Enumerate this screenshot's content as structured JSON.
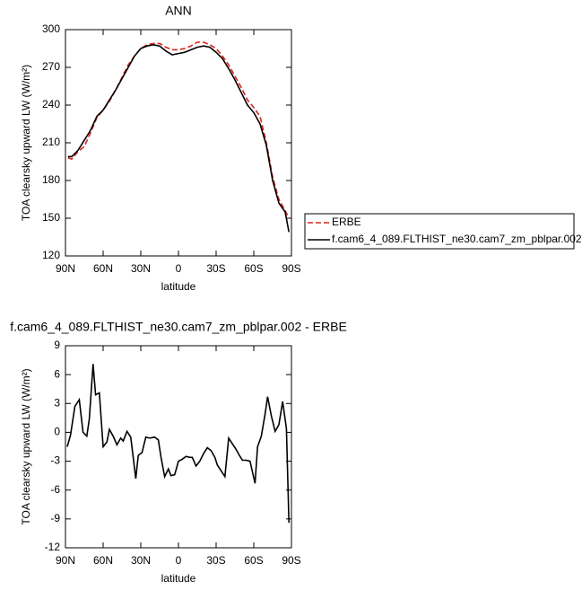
{
  "chart_data": [
    {
      "type": "line",
      "title": "ANN",
      "xlabel": "latitude",
      "ylabel": "TOA clearsky upward LW (W/m²)",
      "x": [
        88,
        85,
        80,
        75,
        70,
        65,
        60,
        55,
        50,
        45,
        40,
        35,
        30,
        25,
        20,
        15,
        10,
        5,
        0,
        -5,
        -10,
        -15,
        -20,
        -25,
        -30,
        -35,
        -40,
        -45,
        -50,
        -55,
        -60,
        -65,
        -70,
        -75,
        -80,
        -85,
        -88
      ],
      "series": [
        {
          "name": "ERBE",
          "color": "#e0201b",
          "dashed": true,
          "values": [
            198,
            197,
            203,
            207,
            218,
            230,
            236,
            243,
            252,
            262,
            272,
            279,
            285,
            288,
            289,
            289,
            286,
            284,
            284,
            285,
            287,
            290,
            290,
            288,
            285,
            279,
            272,
            263,
            254,
            244,
            238,
            231,
            210,
            183,
            165,
            156,
            150
          ]
        },
        {
          "name": "f.cam6_4_089.FLTHIST_ne30.cam7_zm_pblpar.002",
          "color": "#000000",
          "dashed": false,
          "values": [
            199,
            199,
            204,
            212,
            220,
            231,
            236,
            244,
            252,
            261,
            270,
            279,
            285,
            287,
            288,
            287,
            283,
            280,
            281,
            282,
            284,
            286,
            287,
            286,
            282,
            277,
            269,
            260,
            250,
            240,
            234,
            225,
            208,
            180,
            162,
            155,
            139
          ]
        }
      ],
      "xlim": [
        90,
        -90
      ],
      "xticks": [
        {
          "value": 90,
          "label": "90N"
        },
        {
          "value": 60,
          "label": "60N"
        },
        {
          "value": 30,
          "label": "30N"
        },
        0,
        {
          "value": -30,
          "label": "30S"
        },
        {
          "value": -60,
          "label": "60S"
        },
        {
          "value": -90,
          "label": "90S"
        }
      ],
      "ylim": [
        120,
        300
      ],
      "yticks": [
        120,
        150,
        180,
        210,
        240,
        270,
        300
      ],
      "legend": "right"
    },
    {
      "type": "line",
      "title": "f.cam6_4_089.FLTHIST_ne30.cam7_zm_pblpar.002 - ERBE",
      "xlabel": "latitude",
      "ylabel": "TOA clearsky upward LW (W/m²)",
      "x": [
        88.6,
        86,
        82.5,
        79,
        76,
        73,
        71,
        68,
        66,
        63,
        60,
        57,
        55,
        52,
        49,
        46,
        44,
        41,
        38,
        34,
        32,
        29,
        26,
        23,
        19,
        16,
        14,
        11,
        8,
        6,
        3,
        0,
        -3,
        -6,
        -9,
        -11,
        -14,
        -17,
        -20,
        -23,
        -26,
        -29,
        -31,
        -34,
        -37,
        -40,
        -43,
        -46,
        -49,
        -51,
        -54,
        -57,
        -61,
        -63,
        -66,
        -69,
        -71,
        -74,
        -77,
        -80,
        -83,
        -86,
        -88
      ],
      "values": [
        -1.5,
        -0.3,
        2.7,
        3.4,
        0,
        -0.4,
        1.4,
        7.1,
        3.9,
        4.1,
        -1.5,
        -1.0,
        0.3,
        -0.4,
        -1.3,
        -0.6,
        -0.9,
        0.1,
        -0.5,
        -4.8,
        -2.4,
        -2.1,
        -0.5,
        -0.6,
        -0.5,
        -0.8,
        -2.5,
        -4.6,
        -3.8,
        -4.5,
        -4.4,
        -3.0,
        -2.8,
        -2.5,
        -2.6,
        -2.6,
        -3.5,
        -3.0,
        -2.2,
        -1.6,
        -1.9,
        -2.6,
        -3.4,
        -4.0,
        -4.6,
        -0.6,
        -1.2,
        -1.8,
        -2.5,
        -2.9,
        -2.9,
        -3.0,
        -5.3,
        -1.5,
        -0.4,
        1.9,
        3.7,
        1.7,
        0.1,
        0.8,
        3.2,
        0.4,
        -9.4
      ],
      "color": "#000000",
      "xlim": [
        90,
        -90
      ],
      "xticks": [
        {
          "value": 90,
          "label": "90N"
        },
        {
          "value": 60,
          "label": "60N"
        },
        {
          "value": 30,
          "label": "30N"
        },
        0,
        {
          "value": -30,
          "label": "30S"
        },
        {
          "value": -60,
          "label": "60S"
        },
        {
          "value": -90,
          "label": "90S"
        }
      ],
      "ylim": [
        -12,
        9
      ],
      "yticks": [
        -12,
        -9,
        -6,
        -3,
        0,
        3,
        6,
        9
      ]
    }
  ]
}
